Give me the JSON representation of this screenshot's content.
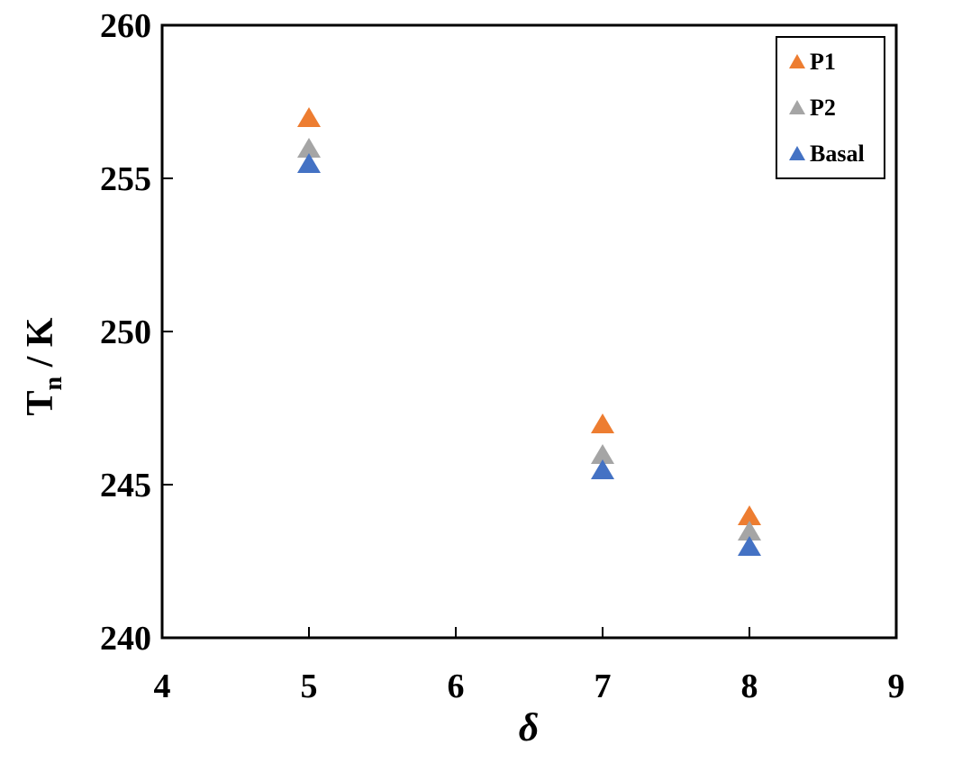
{
  "chart_data": {
    "type": "scatter",
    "xlabel": "δ",
    "ylabel": {
      "main": "T",
      "subscript": "n",
      "suffix": " / K"
    },
    "xlim": [
      4,
      9
    ],
    "ylim": [
      240,
      260
    ],
    "x_ticks": [
      4,
      5,
      6,
      7,
      8,
      9
    ],
    "y_ticks": [
      240,
      245,
      250,
      255,
      260
    ],
    "grid": false,
    "legend_position": "top-right",
    "marker": "triangle",
    "series": [
      {
        "name": "P1",
        "color": "#ED7D31",
        "points": [
          {
            "x": 5,
            "y": 257
          },
          {
            "x": 7,
            "y": 247
          },
          {
            "x": 8,
            "y": 244
          }
        ]
      },
      {
        "name": "P2",
        "color": "#A5A5A5",
        "points": [
          {
            "x": 5,
            "y": 256
          },
          {
            "x": 7,
            "y": 246
          },
          {
            "x": 8,
            "y": 243.5
          }
        ]
      },
      {
        "name": "Basal",
        "color": "#4472C4",
        "points": [
          {
            "x": 5,
            "y": 255.5
          },
          {
            "x": 7,
            "y": 245.5
          },
          {
            "x": 8,
            "y": 243
          }
        ]
      }
    ]
  }
}
